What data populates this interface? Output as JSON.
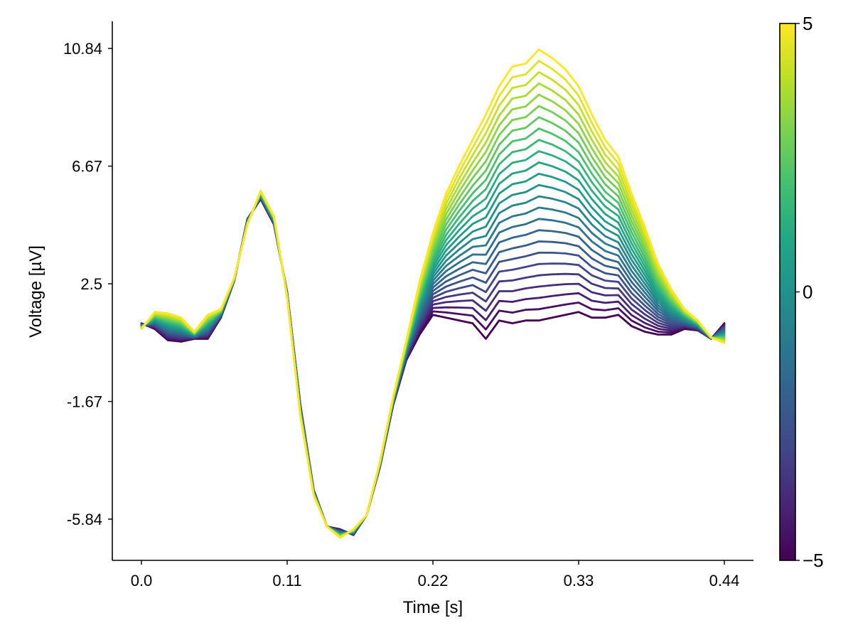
{
  "chart_data": {
    "type": "line",
    "xlabel": "Time [s]",
    "ylabel": "Voltage [µV]",
    "xlim": [
      -0.022,
      0.462
    ],
    "ylim": [
      -7.3,
      11.8
    ],
    "x_ticks": [
      "0.0",
      "0.11",
      "0.22",
      "0.33",
      "0.44"
    ],
    "y_ticks": [
      "-5.84",
      "-1.67",
      "2.5",
      "6.67",
      "10.84"
    ],
    "grid": false,
    "x": [
      0.0,
      0.01,
      0.02,
      0.03,
      0.04,
      0.05,
      0.06,
      0.07,
      0.08,
      0.09,
      0.1,
      0.11,
      0.12,
      0.13,
      0.14,
      0.15,
      0.16,
      0.17,
      0.18,
      0.19,
      0.2,
      0.21,
      0.22,
      0.23,
      0.24,
      0.25,
      0.26,
      0.27,
      0.28,
      0.29,
      0.3,
      0.31,
      0.32,
      0.33,
      0.34,
      0.35,
      0.36,
      0.37,
      0.38,
      0.39,
      0.4,
      0.41,
      0.42,
      0.43,
      0.44
    ],
    "series_min": {
      "name": "-5",
      "values": [
        1.1,
        0.9,
        0.5,
        0.45,
        0.55,
        0.55,
        1.3,
        2.6,
        4.8,
        5.5,
        4.6,
        2.2,
        -1.8,
        -4.8,
        -6.1,
        -6.2,
        -6.4,
        -5.7,
        -4.0,
        -1.8,
        -0.2,
        0.7,
        1.4,
        1.3,
        1.2,
        1.1,
        0.55,
        1.2,
        1.1,
        1.2,
        1.2,
        1.3,
        1.4,
        1.5,
        1.3,
        1.3,
        1.4,
        1.0,
        0.8,
        0.7,
        0.7,
        0.9,
        0.85,
        0.55,
        1.1
      ]
    },
    "series_max": {
      "name": "5",
      "values": [
        0.9,
        1.5,
        1.45,
        1.3,
        0.8,
        1.4,
        1.6,
        2.7,
        4.6,
        5.8,
        4.9,
        2.0,
        -2.2,
        -5.0,
        -6.1,
        -6.5,
        -6.2,
        -5.7,
        -3.8,
        -1.5,
        0.5,
        2.6,
        4.3,
        5.7,
        6.7,
        7.6,
        8.5,
        9.5,
        10.2,
        10.3,
        10.8,
        10.5,
        10.1,
        9.5,
        8.5,
        7.6,
        7.0,
        5.7,
        4.5,
        3.2,
        2.3,
        1.6,
        1.2,
        0.6,
        0.4
      ]
    },
    "n_lines": 25,
    "colormap": "viridis",
    "colorbar": {
      "min": -5,
      "max": 5,
      "ticks": [
        "5",
        "0",
        "−5"
      ]
    }
  }
}
